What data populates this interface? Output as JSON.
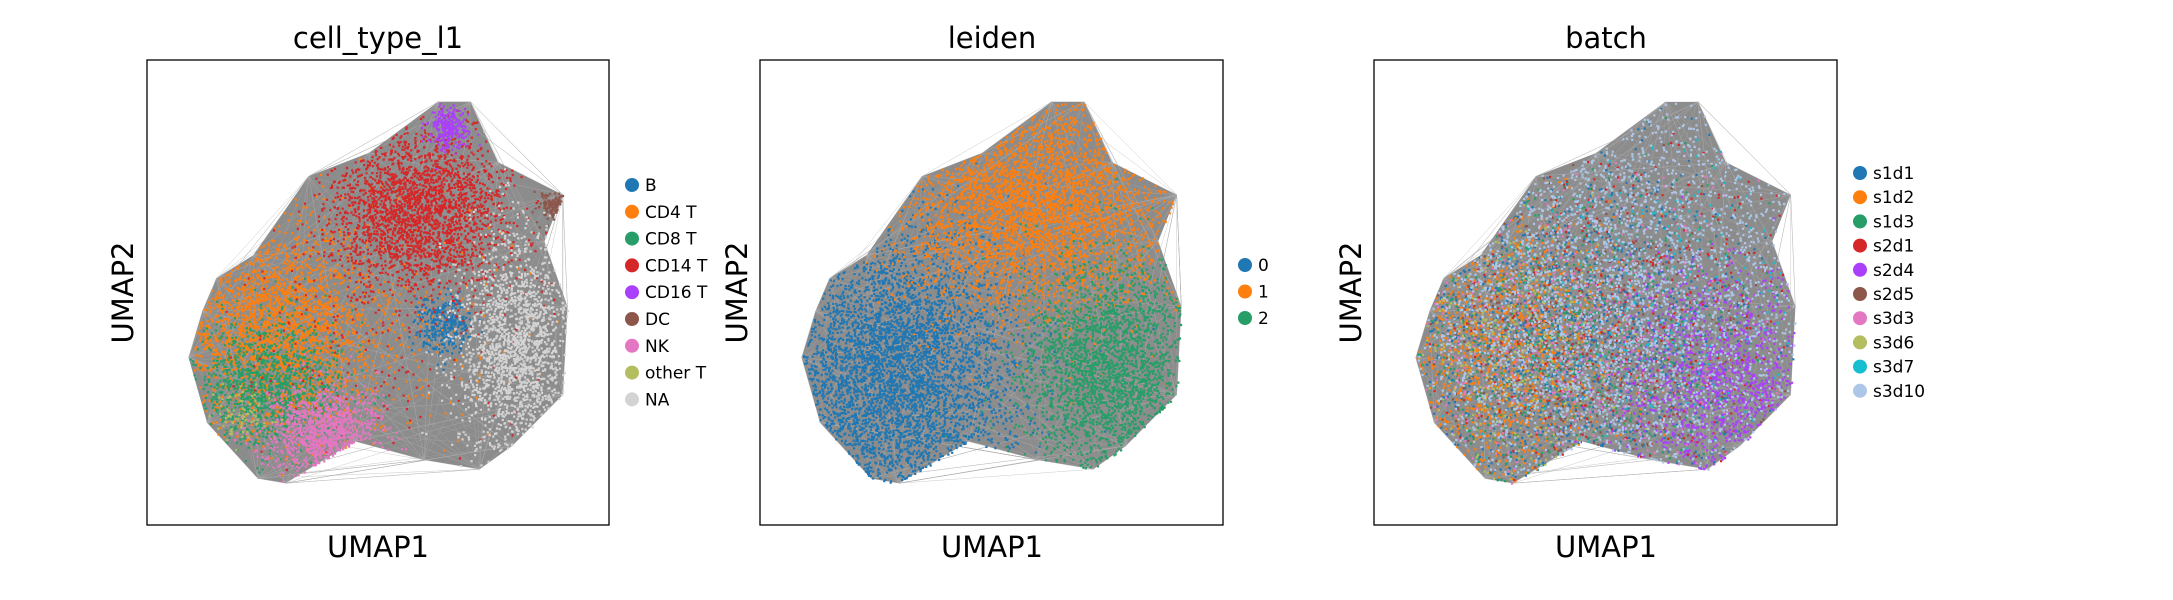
{
  "chart_data": [
    {
      "type": "scatter",
      "title": "cell_type_l1",
      "xlabel": "UMAP1",
      "ylabel": "UMAP2",
      "grid": false,
      "ticks": "none",
      "legend_position": "right",
      "background_edges": "#8c8c8c",
      "series": [
        {
          "name": "B",
          "color": "#1f77b4"
        },
        {
          "name": "CD4 T",
          "color": "#ff7f0e"
        },
        {
          "name": "CD8 T",
          "color": "#279e68"
        },
        {
          "name": "CD14 T",
          "color": "#d62728"
        },
        {
          "name": "CD16 T",
          "color": "#aa40fc"
        },
        {
          "name": "DC",
          "color": "#8c564b"
        },
        {
          "name": "NK",
          "color": "#e377c2"
        },
        {
          "name": "other T",
          "color": "#b5bd61"
        },
        {
          "name": "NA",
          "color": "#d3d3d3"
        }
      ]
    },
    {
      "type": "scatter",
      "title": "leiden",
      "xlabel": "UMAP1",
      "ylabel": "UMAP2",
      "grid": false,
      "ticks": "none",
      "legend_position": "right",
      "background_edges": "#8c8c8c",
      "series": [
        {
          "name": "0",
          "color": "#1f77b4"
        },
        {
          "name": "1",
          "color": "#ff7f0e"
        },
        {
          "name": "2",
          "color": "#279e68"
        }
      ]
    },
    {
      "type": "scatter",
      "title": "batch",
      "xlabel": "UMAP1",
      "ylabel": "UMAP2",
      "grid": false,
      "ticks": "none",
      "legend_position": "right",
      "background_edges": "#8c8c8c",
      "series": [
        {
          "name": "s1d1",
          "color": "#1f77b4"
        },
        {
          "name": "s1d2",
          "color": "#ff7f0e"
        },
        {
          "name": "s1d3",
          "color": "#279e68"
        },
        {
          "name": "s2d1",
          "color": "#d62728"
        },
        {
          "name": "s2d4",
          "color": "#aa40fc"
        },
        {
          "name": "s2d5",
          "color": "#8c564b"
        },
        {
          "name": "s3d3",
          "color": "#e377c2"
        },
        {
          "name": "s3d6",
          "color": "#b5bd61"
        },
        {
          "name": "s3d7",
          "color": "#17becf"
        },
        {
          "name": "s3d10",
          "color": "#aec7e8"
        }
      ]
    }
  ]
}
